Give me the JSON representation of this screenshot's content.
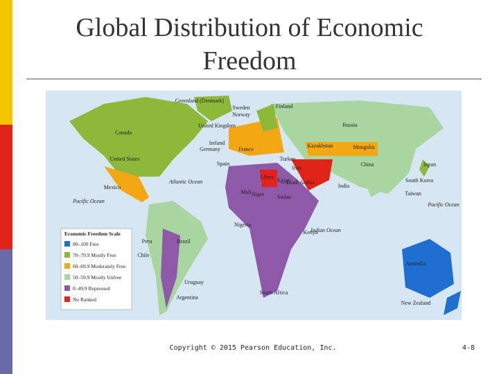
{
  "header": {
    "title_lines": [
      "Global Distribution of Economic",
      "Freedom"
    ]
  },
  "map": {
    "labels": [
      "Greenland (Denmark)",
      "Sweden",
      "Norway",
      "Finland",
      "Russia",
      "Canada",
      "United Kingdom",
      "Ireland",
      "Germany",
      "France",
      "Kazakhstan",
      "Mongolia",
      "United States",
      "Spain",
      "Turkey",
      "Iran",
      "China",
      "Japan",
      "Atlantic Ocean",
      "Libya",
      "Egypt",
      "Saudi Arabia",
      "India",
      "South Korea",
      "Taiwan",
      "Mexico",
      "Pacific Ocean",
      "Mali",
      "Niger",
      "Sudan",
      "Pacific Ocean",
      "Nigeria",
      "Indian Ocean",
      "Kenya",
      "Peru",
      "Brazil",
      "Chile",
      "Uruguay",
      "Argentina",
      "South Africa",
      "Australia",
      "New Zealand"
    ],
    "legend": {
      "title": "Economic Freedom Scale",
      "items": [
        {
          "label": "80–100 Free",
          "color": "#1f6fd0"
        },
        {
          "label": "70–79.9 Mostly Free",
          "color": "#8db83a"
        },
        {
          "label": "60–69.9 Moderately Free",
          "color": "#f3a712"
        },
        {
          "label": "50–59.9 Mostly Unfree",
          "color": "#a8d5a0"
        },
        {
          "label": "0–49.9 Repressed",
          "color": "#8e59a8"
        },
        {
          "label": "No Ranked",
          "color": "#e2231a"
        }
      ]
    }
  },
  "footer": {
    "copyright": "Copyright © 2015 Pearson Education, Inc.",
    "page": "4-8"
  }
}
